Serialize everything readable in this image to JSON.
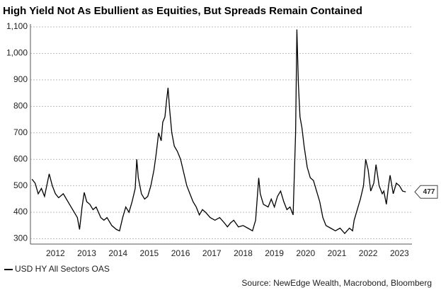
{
  "chart_data": {
    "type": "line",
    "title": "High Yield Not As Ebullient as Equities, But Spreads Remain Contained",
    "source": "Source: NewEdge Wealth, Macrobond, Bloomberg",
    "legend": "bottom-left",
    "grid": true,
    "x": [
      2011.75,
      2011.85,
      2011.95,
      2012.05,
      2012.15,
      2012.3,
      2012.4,
      2012.5,
      2012.6,
      2012.75,
      2012.9,
      2013.0,
      2013.1,
      2013.2,
      2013.27,
      2013.35,
      2013.42,
      2013.5,
      2013.6,
      2013.7,
      2013.8,
      2013.95,
      2014.05,
      2014.15,
      2014.3,
      2014.45,
      2014.55,
      2014.65,
      2014.75,
      2014.85,
      2014.95,
      2015.05,
      2015.1,
      2015.15,
      2015.25,
      2015.35,
      2015.45,
      2015.55,
      2015.65,
      2015.72,
      2015.8,
      2015.88,
      2015.93,
      2016.0,
      2016.05,
      2016.1,
      2016.15,
      2016.22,
      2016.3,
      2016.4,
      2016.5,
      2016.6,
      2016.7,
      2016.8,
      2016.9,
      2017.0,
      2017.1,
      2017.2,
      2017.3,
      2017.45,
      2017.6,
      2017.75,
      2017.9,
      2018.0,
      2018.1,
      2018.2,
      2018.35,
      2018.5,
      2018.65,
      2018.8,
      2018.9,
      2019.0,
      2019.05,
      2019.15,
      2019.3,
      2019.4,
      2019.5,
      2019.6,
      2019.7,
      2019.8,
      2019.9,
      2020.0,
      2020.1,
      2020.18,
      2020.22,
      2020.27,
      2020.32,
      2020.38,
      2020.45,
      2020.55,
      2020.65,
      2020.75,
      2020.85,
      2020.95,
      2021.05,
      2021.15,
      2021.3,
      2021.45,
      2021.6,
      2021.75,
      2021.9,
      2022.0,
      2022.05,
      2022.15,
      2022.25,
      2022.35,
      2022.42,
      2022.5,
      2022.58,
      2022.68,
      2022.75,
      2022.85,
      2022.95,
      2023.0,
      2023.08,
      2023.15,
      2023.2,
      2023.3,
      2023.4,
      2023.5,
      2023.6,
      2023.7
    ],
    "series": [
      {
        "name": "USD HY All Sectors OAS",
        "color": "#000000",
        "values": [
          525,
          510,
          470,
          490,
          460,
          545,
          500,
          470,
          455,
          470,
          440,
          420,
          400,
          380,
          335,
          420,
          475,
          440,
          430,
          410,
          420,
          380,
          370,
          380,
          350,
          335,
          330,
          380,
          420,
          400,
          440,
          490,
          600,
          530,
          470,
          450,
          460,
          500,
          560,
          620,
          700,
          670,
          740,
          760,
          820,
          870,
          790,
          700,
          650,
          630,
          600,
          550,
          500,
          470,
          440,
          420,
          390,
          410,
          400,
          380,
          370,
          380,
          360,
          345,
          360,
          370,
          345,
          350,
          340,
          330,
          370,
          530,
          470,
          430,
          420,
          450,
          420,
          460,
          480,
          440,
          410,
          420,
          390,
          700,
          1090,
          880,
          760,
          720,
          650,
          570,
          530,
          520,
          480,
          440,
          380,
          350,
          340,
          330,
          340,
          320,
          340,
          330,
          370,
          410,
          450,
          500,
          600,
          560,
          480,
          510,
          580,
          500,
          470,
          480,
          430,
          500,
          540,
          470,
          510,
          500,
          480,
          477
        ]
      }
    ],
    "xlim": [
      2011.7,
      2023.9
    ],
    "ylim": [
      280,
      1100
    ],
    "xticks": [
      {
        "value": 2012.5,
        "label": "2012"
      },
      {
        "value": 2013.5,
        "label": "2013"
      },
      {
        "value": 2014.5,
        "label": "2014"
      },
      {
        "value": 2015.5,
        "label": "2015"
      },
      {
        "value": 2016.5,
        "label": "2016"
      },
      {
        "value": 2017.5,
        "label": "2017"
      },
      {
        "value": 2018.5,
        "label": "2018"
      },
      {
        "value": 2019.5,
        "label": "2019"
      },
      {
        "value": 2020.5,
        "label": "2020"
      },
      {
        "value": 2021.5,
        "label": "2021"
      },
      {
        "value": 2022.5,
        "label": "2022"
      },
      {
        "value": 2023.5,
        "label": "2023"
      }
    ],
    "yticks": [
      300,
      400,
      500,
      600,
      700,
      800,
      900,
      {
        "value": 1000,
        "label": "1,000"
      },
      {
        "value": 1100,
        "label": "1,100"
      }
    ]
  }
}
